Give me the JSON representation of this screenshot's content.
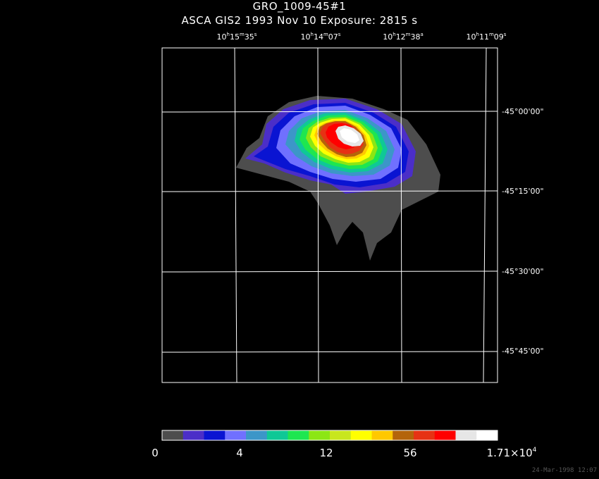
{
  "header": {
    "title": "GRO_1009-45#1",
    "subtitle": "ASCA GIS2   1993 Nov 10    Exposure:  2815 s"
  },
  "axes": {
    "ra_ticks": [
      {
        "h": "10",
        "m": "15",
        "s": "35"
      },
      {
        "h": "10",
        "m": "14",
        "s": "07"
      },
      {
        "h": "10",
        "m": "12",
        "s": "38"
      },
      {
        "h": "10",
        "m": "11",
        "s": "09"
      }
    ],
    "dec_ticks": [
      "-45°00'00\"",
      "-45°15'00\"",
      "-45°30'00\"",
      "-45°45'00\""
    ]
  },
  "colorbar": {
    "colors": [
      "#4d4d4d",
      "#4b2ec8",
      "#0a14d2",
      "#7070ff",
      "#3c96c8",
      "#0fc896",
      "#1ee650",
      "#8ce614",
      "#c8e61e",
      "#ffff00",
      "#ffc800",
      "#b4640a",
      "#e63214",
      "#ff0000",
      "#e6e6e6",
      "#ffffff"
    ],
    "labels": [
      {
        "text": "0",
        "sup": ""
      },
      {
        "text": "4",
        "sup": ""
      },
      {
        "text": "12",
        "sup": ""
      },
      {
        "text": "56",
        "sup": ""
      },
      {
        "text": "1.71×10",
        "sup": "4"
      }
    ]
  },
  "timestamp": "24-Mar-1998 12:07"
}
